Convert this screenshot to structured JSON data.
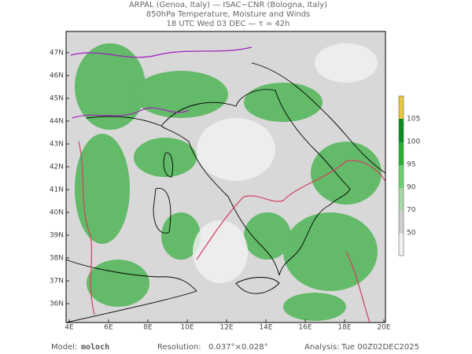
{
  "header": {
    "line1": "ARPAL (Genoa, Italy)  —  ISAC−CNR (Bologna, Italy)",
    "line2": "850hPa Temperature, Moisture and Winds",
    "line3": "18 UTC Wed 03 DEC  —  τ = 42h"
  },
  "map": {
    "lat_labels": [
      "47N",
      "46N",
      "45N",
      "44N",
      "43N",
      "42N",
      "41N",
      "40N",
      "39N",
      "38N",
      "37N",
      "36N"
    ],
    "lon_labels": [
      "4E",
      "6E",
      "8E",
      "10E",
      "12E",
      "14E",
      "16E",
      "18E",
      "20E"
    ]
  },
  "colorbar": {
    "levels": [
      105,
      100,
      95,
      90,
      70,
      50
    ]
  },
  "footer": {
    "model_label": "Model:",
    "model": "moloch",
    "resolution_label": "Resolution:",
    "resolution": "0.037°×0.028°",
    "analysis_label": "Analysis:",
    "analysis": "Tue 00Z02DEC2025"
  }
}
